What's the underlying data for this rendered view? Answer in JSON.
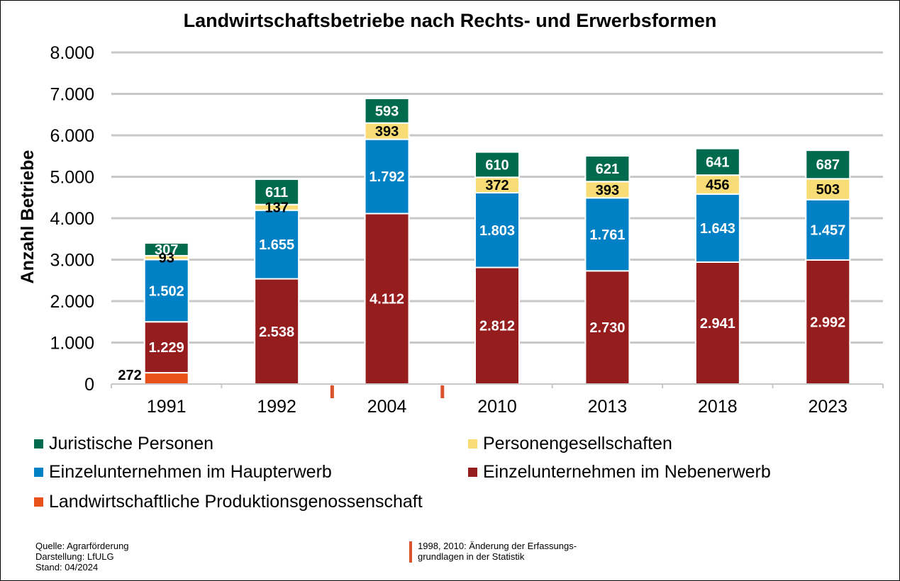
{
  "chart_data": {
    "type": "bar",
    "stacked": true,
    "title": "Landwirtschaftsbetriebe  nach Rechts- und Erwerbsformen",
    "xlabel": "",
    "ylabel": "Anzahl Betriebe",
    "ylim": [
      0,
      8000
    ],
    "yticks": [
      0,
      1000,
      2000,
      3000,
      4000,
      5000,
      6000,
      7000,
      8000
    ],
    "ytick_labels": [
      "0",
      "1.000",
      "2.000",
      "3.000",
      "4.000",
      "5.000",
      "6.000",
      "7.000",
      "8.000"
    ],
    "grid": true,
    "categories": [
      "1991",
      "1992",
      "2004",
      "2010",
      "2013",
      "2018",
      "2023"
    ],
    "series": [
      {
        "name": "Landwirtschaftliche Produktionsgenossenschaft",
        "color": "#E85119",
        "values": [
          272,
          0,
          0,
          0,
          0,
          0,
          0
        ],
        "labels": [
          "272",
          "",
          "",
          "",
          "",
          "",
          ""
        ]
      },
      {
        "name": "Einzelunternehmen im Nebenerwerb",
        "color": "#951D1E",
        "values": [
          1229,
          2538,
          4112,
          2812,
          2730,
          2941,
          2992
        ],
        "labels": [
          "1.229",
          "2.538",
          "4.112",
          "2.812",
          "2.730",
          "2.941",
          "2.992"
        ]
      },
      {
        "name": "Einzelunternehmen im Haupterwerb",
        "color": "#0080C5",
        "values": [
          1502,
          1655,
          1792,
          1803,
          1761,
          1643,
          1457
        ],
        "labels": [
          "1.502",
          "1.655",
          "1.792",
          "1.803",
          "1.761",
          "1.643",
          "1.457"
        ]
      },
      {
        "name": "Personengesellschaften",
        "color": "#F8DC75",
        "values": [
          93,
          137,
          393,
          372,
          393,
          456,
          503
        ],
        "labels": [
          "93",
          "137",
          "393",
          "372",
          "393",
          "456",
          "503"
        ]
      },
      {
        "name": "Juristische Personen",
        "color": "#006A4E",
        "values": [
          307,
          611,
          593,
          610,
          621,
          641,
          687
        ],
        "labels": [
          "307",
          "611",
          "593",
          "610",
          "621",
          "641",
          "687"
        ]
      }
    ],
    "legend_position": "bottom",
    "annotations": {
      "break_markers_between": [
        [
          "1992",
          "2004"
        ],
        [
          "2004",
          "2010"
        ]
      ],
      "break_color": "#D9532C"
    }
  },
  "legend": [
    {
      "label": "Juristische Personen",
      "color": "#006A4E"
    },
    {
      "label": "Personengesellschaften",
      "color": "#F8DC75"
    },
    {
      "label": "Einzelunternehmen im Haupterwerb",
      "color": "#0080C5"
    },
    {
      "label": "Einzelunternehmen im Nebenerwerb",
      "color": "#951D1E"
    },
    {
      "label": "Landwirtschaftliche Produktionsgenossenschaft",
      "color": "#E85119"
    }
  ],
  "footer": {
    "source": "Quelle: Agrarförderung",
    "author": "Darstellung: LfULG",
    "date": "Stand: 04/2024",
    "note_line1": "1998, 2010: Änderung der Erfassungs-",
    "note_line2": "grundlagen in der Statistik"
  }
}
